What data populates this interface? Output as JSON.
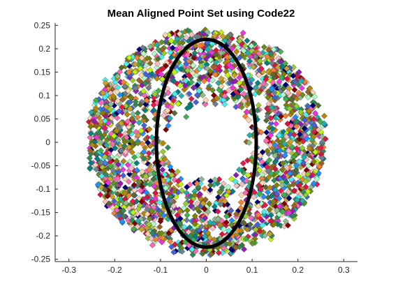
{
  "chart_data": {
    "type": "scatter",
    "title": "Mean Aligned Point Set using Code22",
    "xlabel": "",
    "ylabel": "",
    "xlim": [
      -0.33,
      0.33
    ],
    "ylim": [
      -0.255,
      0.255
    ],
    "xticks": [
      -0.3,
      -0.2,
      -0.1,
      0,
      0.1,
      0.2,
      0.3
    ],
    "xtick_labels": [
      "-0.3",
      "-0.2",
      "-0.1",
      "0",
      "0.1",
      "0.2",
      "0.3"
    ],
    "yticks": [
      0.25,
      0.2,
      0.15,
      0.1,
      0.05,
      0,
      -0.05,
      -0.1,
      -0.15,
      -0.2,
      -0.25
    ],
    "ytick_labels": [
      "0.25",
      "0.2",
      "0.15",
      "0.1",
      "0.05",
      "0",
      "-0.05",
      "-0.1",
      "-0.15",
      "-0.2",
      "-0.25"
    ],
    "grid": false,
    "marker": "diamond",
    "point_cloud": {
      "shape": "ring",
      "center": [
        0.0,
        0.0
      ],
      "inner_radius_x": 0.08,
      "inner_radius_y": 0.07,
      "outer_radius_x": 0.26,
      "outer_radius_y": 0.24,
      "colors": [
        "#3cb44b",
        "#e6194b",
        "#4363d8",
        "#f58231",
        "#911eb4",
        "#46f0f0",
        "#f032e6",
        "#bcf60c",
        "#fabebe",
        "#008080",
        "#9a6324",
        "#800000",
        "#aaffc3",
        "#808000",
        "#000075",
        "#ffd8b1",
        "#6b8e23",
        "#c9a227",
        "#20b2aa",
        "#dc143c",
        "#2e8b57",
        "#8fbc8f",
        "#1e90ff",
        "#ff69b4",
        "#556b2f",
        "#b8860b",
        "#708090",
        "#9acd32"
      ]
    },
    "mean_shape": {
      "type": "ellipse",
      "center": [
        0.0,
        -0.002
      ],
      "radius_x": 0.109,
      "radius_y": 0.222,
      "color": "#000000"
    }
  }
}
